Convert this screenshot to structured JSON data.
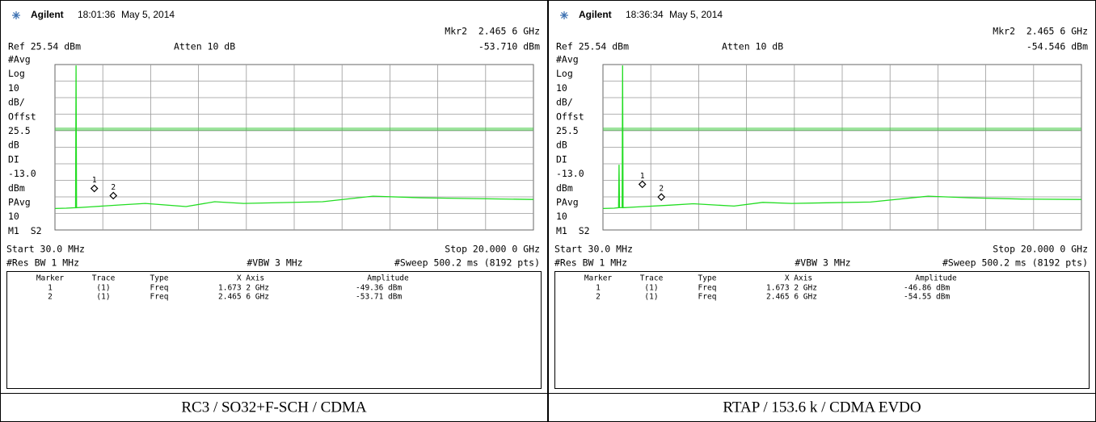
{
  "panels": [
    {
      "brand": "Agilent",
      "time": "18:01:36",
      "date": "May 5, 2014",
      "marker_readout": "Mkr2  2.465 6 GHz",
      "ref": "Ref 25.54 dBm",
      "atten": "Atten 10 dB",
      "marker_amplitude": "-53.710 dBm",
      "side_labels": [
        "#Avg",
        "Log",
        "10",
        "dB/",
        "Offst",
        "25.5",
        "dB",
        "DI",
        "-13.0",
        "dBm",
        "PAvg",
        "10",
        "M1  S2"
      ],
      "start": "Start 30.0 MHz",
      "stop": "Stop 20.000 0 GHz",
      "res_bw": "#Res BW 1 MHz",
      "vbw": "#VBW 3 MHz",
      "sweep": "#Sweep 500.2 ms (8192 pts)",
      "table": {
        "header": [
          "Marker",
          "Trace",
          "Type",
          "X Axis",
          "Amplitude"
        ],
        "rows": [
          [
            "1",
            "(1)",
            "Freq",
            "1.673 2 GHz",
            "-49.36 dBm"
          ],
          [
            "2",
            "(1)",
            "Freq",
            "2.465 6 GHz",
            "-53.71 dBm"
          ]
        ]
      },
      "caption": "RC3 / SO32+F-SCH / CDMA",
      "plot": {
        "xlim": [
          0.03,
          20
        ],
        "ylim": [
          -74.46,
          25.54
        ],
        "display_line": -13,
        "trace": {
          "x": [
            0.03,
            0.5,
            0.89,
            0.91,
            0.93,
            1.5,
            2.8,
            3.8,
            5.5,
            6.7,
            7.9,
            11.2,
            13.3,
            15.3,
            17.5,
            20
          ],
          "values": [
            -61.5,
            -61.3,
            -61,
            25,
            -61,
            -60.5,
            -59.3,
            -58.4,
            -60.3,
            -57.4,
            -58.4,
            -57.4,
            -54,
            -55,
            -55.5,
            -56
          ]
        },
        "markers": [
          {
            "label": "1",
            "x": 1.6732,
            "y": -49.36
          },
          {
            "label": "2",
            "x": 2.4656,
            "y": -53.71
          }
        ]
      }
    },
    {
      "brand": "Agilent",
      "time": "18:36:34",
      "date": "May 5, 2014",
      "marker_readout": "Mkr2  2.465 6 GHz",
      "ref": "Ref 25.54 dBm",
      "atten": "Atten 10 dB",
      "marker_amplitude": "-54.546 dBm",
      "side_labels": [
        "#Avg",
        "Log",
        "10",
        "dB/",
        "Offst",
        "25.5",
        "dB",
        "DI",
        "-13.0",
        "dBm",
        "PAvg",
        "10",
        "M1  S2"
      ],
      "start": "Start 30.0 MHz",
      "stop": "Stop 20.000 0 GHz",
      "res_bw": "#Res BW 1 MHz",
      "vbw": "#VBW 3 MHz",
      "sweep": "#Sweep 500.2 ms (8192 pts)",
      "table": {
        "header": [
          "Marker",
          "Trace",
          "Type",
          "X Axis",
          "Amplitude"
        ],
        "rows": [
          [
            "1",
            "(1)",
            "Freq",
            "1.673 2 GHz",
            "-46.86 dBm"
          ],
          [
            "2",
            "(1)",
            "Freq",
            "2.465 6 GHz",
            "-54.55 dBm"
          ]
        ]
      },
      "caption": "RTAP / 153.6 k / CDMA EVDO",
      "plot": {
        "xlim": [
          0.03,
          20
        ],
        "ylim": [
          -74.46,
          25.54
        ],
        "display_line": -13,
        "trace": {
          "x": [
            0.03,
            0.5,
            0.68,
            0.7,
            0.72,
            0.83,
            0.85,
            0.87,
            1.5,
            2.8,
            3.8,
            5.5,
            6.7,
            7.9,
            11.2,
            13.6,
            15.3,
            17.5,
            20
          ],
          "values": [
            -61.5,
            -61.3,
            -61,
            -35,
            -61,
            -61,
            25,
            -61,
            -60.5,
            -59.5,
            -58.6,
            -60,
            -57.8,
            -58.4,
            -57.6,
            -54,
            -55,
            -55.8,
            -56
          ]
        },
        "markers": [
          {
            "label": "1",
            "x": 1.6732,
            "y": -46.86
          },
          {
            "label": "2",
            "x": 2.4656,
            "y": -54.55
          }
        ]
      }
    }
  ]
}
